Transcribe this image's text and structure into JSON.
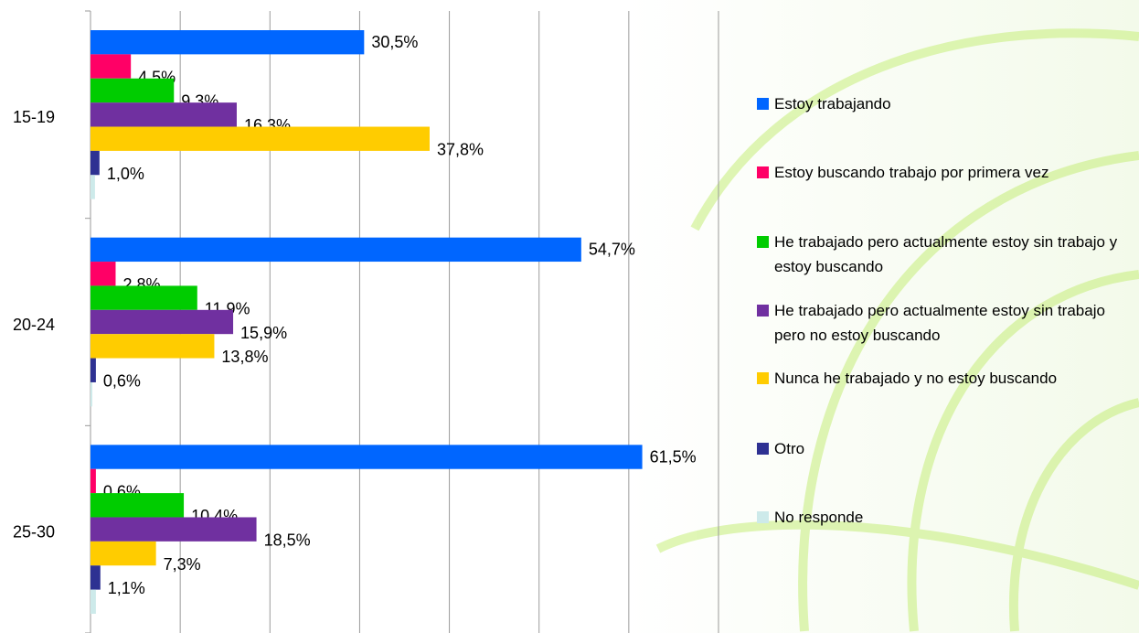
{
  "chart_data": {
    "type": "hbar",
    "categories": [
      "15-19",
      "20-24",
      "25-30"
    ],
    "series": [
      {
        "name": "Estoy trabajando",
        "color": "#0066ff",
        "values": [
          30.5,
          54.7,
          61.5
        ],
        "value_labels": [
          "30,5%",
          "54,7%",
          "61,5%"
        ]
      },
      {
        "name": "Estoy buscando trabajo por primera vez",
        "color": "#ff0066",
        "values": [
          4.5,
          2.8,
          0.6
        ],
        "value_labels": [
          "4,5%",
          "2,8%",
          "0,6%"
        ]
      },
      {
        "name": "He trabajado pero actualmente estoy sin trabajo y estoy buscando",
        "color": "#00cc00",
        "values": [
          9.3,
          11.9,
          10.4
        ],
        "value_labels": [
          "9,3%",
          "11,9%",
          "10,4%"
        ]
      },
      {
        "name": "He trabajado pero actualmente estoy sin trabajo pero no estoy buscando",
        "color": "#7030a0",
        "values": [
          16.3,
          15.9,
          18.5
        ],
        "value_labels": [
          "16,3%",
          "15,9%",
          "18,5%"
        ]
      },
      {
        "name": "Nunca he trabajado y no estoy buscando",
        "color": "#ffcc00",
        "values": [
          37.8,
          13.8,
          7.3
        ],
        "value_labels": [
          "37,8%",
          "13,8%",
          "7,3%"
        ]
      },
      {
        "name": "Otro",
        "color": "#2e3192",
        "values": [
          1.0,
          0.6,
          1.1
        ],
        "value_labels": [
          "1,0%",
          "0,6%",
          "1,1%"
        ]
      },
      {
        "name": "No responde",
        "color": "#cdeaea",
        "values": [
          0.5,
          0.2,
          0.6
        ]
      }
    ],
    "xlim": [
      0,
      70
    ],
    "xticks": [
      0,
      10,
      20,
      30,
      40,
      50,
      60,
      70
    ],
    "grid": true
  }
}
